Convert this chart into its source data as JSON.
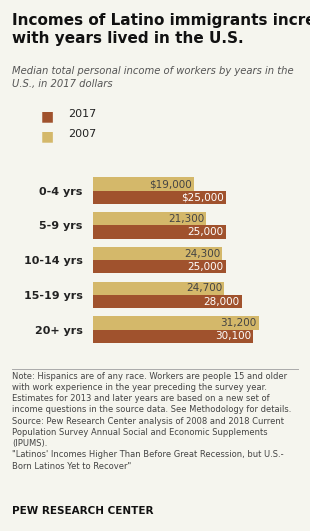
{
  "title": "Incomes of Latino immigrants increase\nwith years lived in the U.S.",
  "subtitle": "Median total personal income of workers by years in the\nU.S., in 2017 dollars",
  "categories": [
    "0-4 yrs",
    "5-9 yrs",
    "10-14 yrs",
    "15-19 yrs",
    "20+ yrs"
  ],
  "values_2017": [
    25000,
    25000,
    25000,
    28000,
    30100
  ],
  "values_2007": [
    19000,
    21300,
    24300,
    24700,
    31200
  ],
  "labels_2017": [
    "$25,000",
    "25,000",
    "25,000",
    "28,000",
    "30,100"
  ],
  "labels_2007": [
    "$19,000",
    "21,300",
    "24,300",
    "24,700",
    "31,200"
  ],
  "color_2017": "#A0522D",
  "color_2007": "#D4B86A",
  "background_color": "#F5F5EE",
  "xlim_max": 35000,
  "bar_height": 0.38,
  "note_text": "Note: Hispanics are of any race. Workers are people 15 and older\nwith work experience in the year preceding the survey year.\nEstimates for 2013 and later years are based on a new set of\nincome questions in the source data. See Methodology for details.\nSource: Pew Research Center analysis of 2008 and 2018 Current\nPopulation Survey Annual Social and Economic Supplements\n(IPUMS).\n\"Latinos' Incomes Higher Than Before Great Recession, but U.S.-\nBorn Latinos Yet to Recover\"",
  "pew_label": "PEW RESEARCH CENTER"
}
